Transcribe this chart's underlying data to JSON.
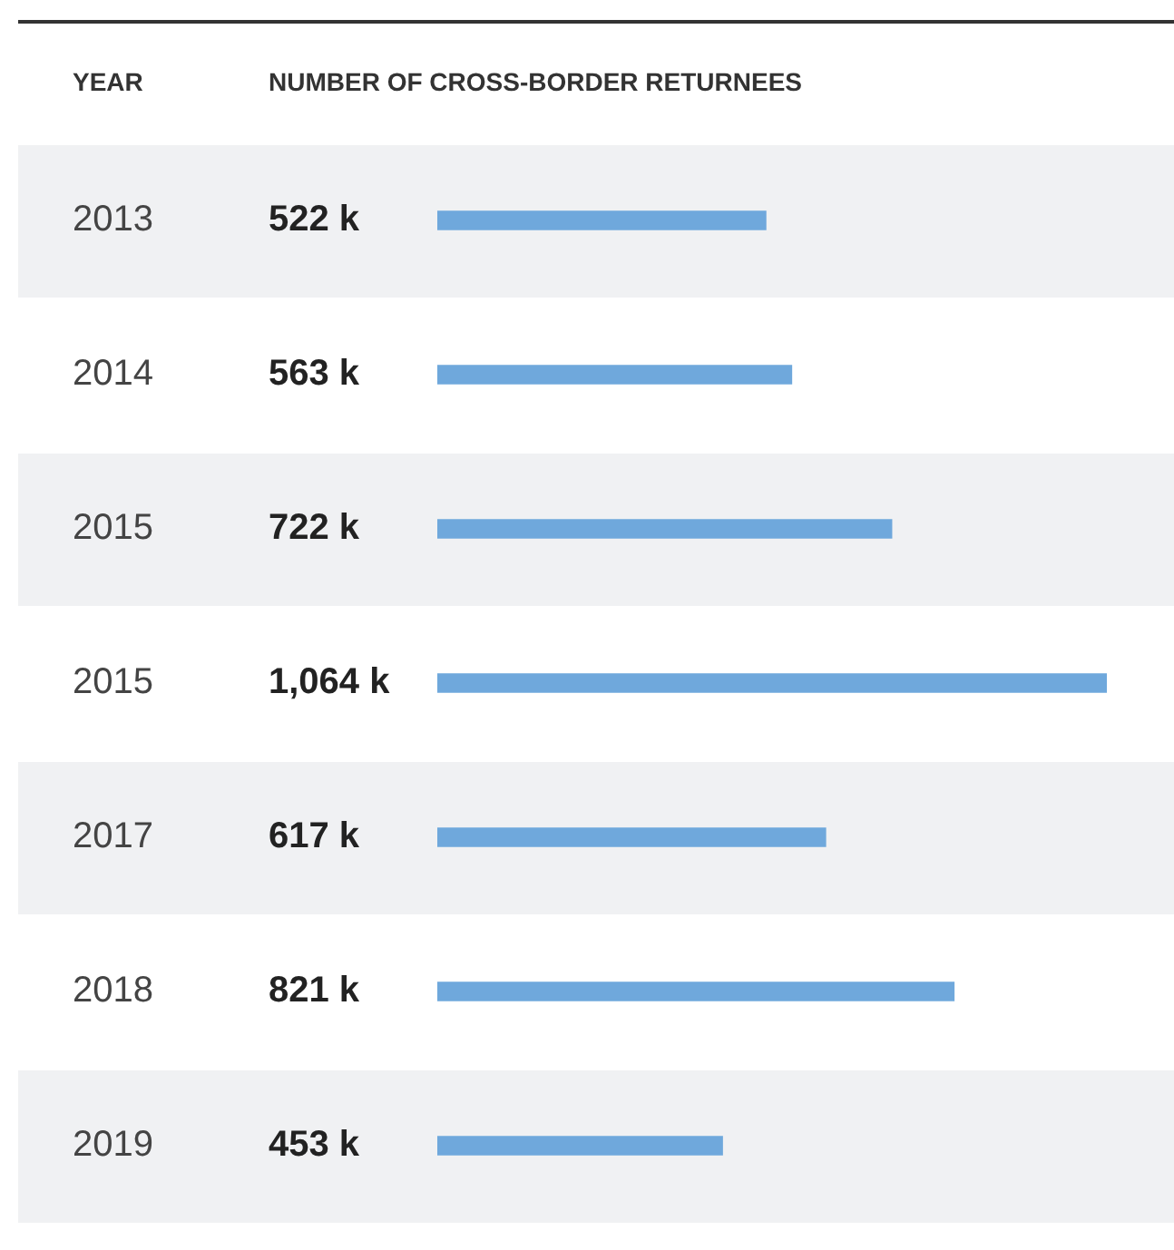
{
  "chart_data": {
    "type": "bar",
    "orientation": "horizontal",
    "title": "NUMBER OF CROSS-BORDER RETURNEES",
    "ylabel": "YEAR",
    "categories": [
      "2013",
      "2014",
      "2015",
      "2015",
      "2017",
      "2018",
      "2019"
    ],
    "values": [
      522,
      563,
      722,
      1064,
      617,
      821,
      453
    ],
    "value_labels": [
      "522 k",
      "563 k",
      "722 k",
      "1,064 k",
      "617 k",
      "821 k",
      "453 k"
    ],
    "color": "#6fa8dc",
    "legend": false,
    "tick_labels": "y"
  }
}
